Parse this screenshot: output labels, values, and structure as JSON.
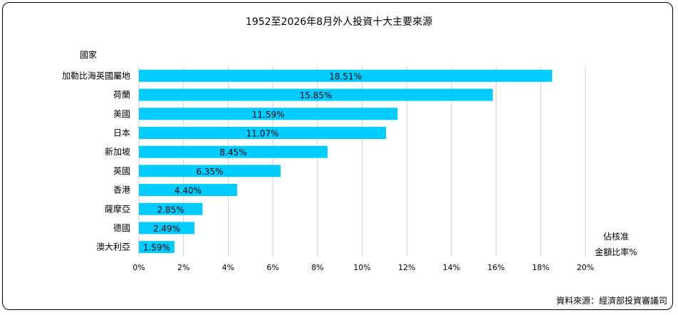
{
  "chart_data": {
    "type": "bar",
    "orientation": "horizontal",
    "title": "1952至2026年8月外人投資十大主要來源",
    "ylabel": "國家",
    "xlabel_line1": "佔核准",
    "xlabel_line2": "金額比率%",
    "source": "資料來源：經濟部投資審議司",
    "categories": [
      "加勒比海英國屬地",
      "荷蘭",
      "美國",
      "日本",
      "新加坡",
      "英國",
      "香港",
      "薩摩亞",
      "德國",
      "澳大利亞"
    ],
    "values": [
      18.51,
      15.85,
      11.59,
      11.07,
      8.45,
      6.35,
      4.4,
      2.85,
      2.49,
      1.59
    ],
    "value_labels": [
      "18.51%",
      "15.85%",
      "11.59%",
      "11.07%",
      "8.45%",
      "6.35%",
      "4.40%",
      "2.85%",
      "2.49%",
      "1.59%"
    ],
    "xlim": [
      0,
      20
    ],
    "xticks": [
      "0%",
      "2%",
      "4%",
      "6%",
      "8%",
      "10%",
      "12%",
      "14%",
      "16%",
      "18%",
      "20%"
    ],
    "grid": true,
    "bar_color": "#00CCFF"
  }
}
